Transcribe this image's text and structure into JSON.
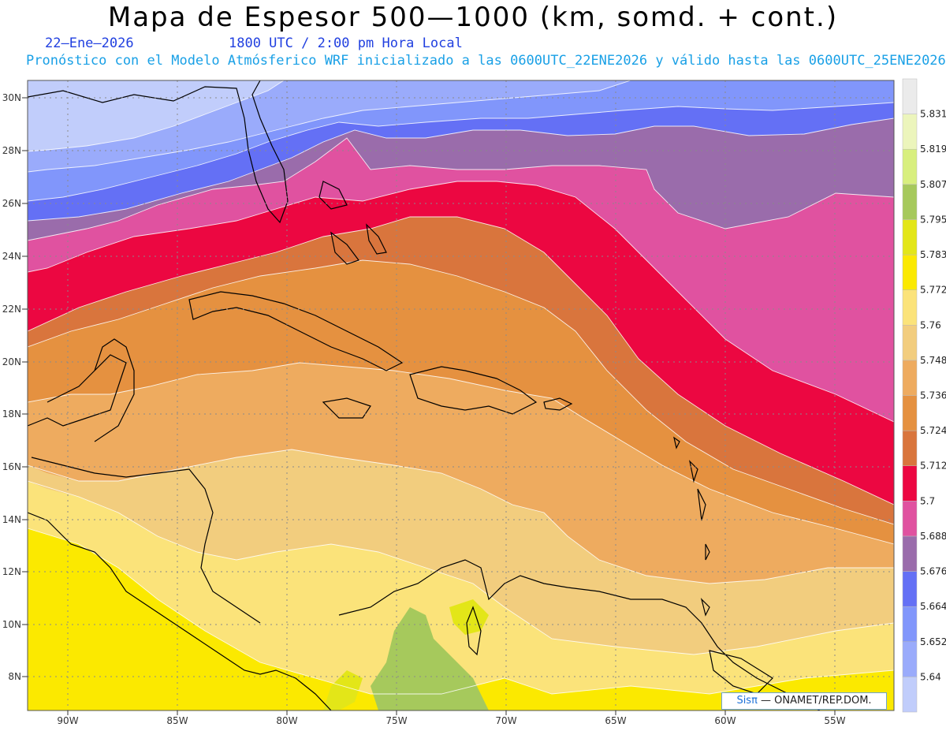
{
  "header": {
    "title": "Mapa de Espesor 500—1000 (km, somd. + cont.)",
    "date": "22—Ene—2026",
    "time": "1800 UTC / 2:00 pm Hora Local",
    "forecast": "Pronóstico con el Modelo Atmósferico WRF inicializado a las 0600UTC_22ENE2026 y válido hasta las  0600UTC_25ENE2026"
  },
  "map": {
    "lat_labels": [
      "30N",
      "28N",
      "26N",
      "24N",
      "22N",
      "20N",
      "18N",
      "16N",
      "14N",
      "12N",
      "10N",
      "8N"
    ],
    "lon_labels": [
      "90W",
      "85W",
      "80W",
      "75W",
      "70W",
      "65W",
      "60W",
      "55W"
    ],
    "grid": true
  },
  "colorbar": {
    "labels": [
      "5.64",
      "5.652",
      "5.664",
      "5.676",
      "5.688",
      "5.7",
      "5.712",
      "5.724",
      "5.736",
      "5.748",
      "5.76",
      "5.772",
      "5.783",
      "5.795",
      "5.807",
      "5.819",
      "5.831"
    ],
    "colors": [
      "#c1cdfb",
      "#9aabfb",
      "#8196fb",
      "#6470f5",
      "#9a6cab",
      "#e052a0",
      "#ec0741",
      "#d9753d",
      "#e59140",
      "#eeab5f",
      "#f2cd7e",
      "#fbe37a",
      "#fbe900",
      "#e3e618",
      "#a6c95c",
      "#d8ef7e",
      "#ecf5bc",
      "#ebebeb"
    ]
  },
  "credit": {
    "sis": "Sisπ",
    "org": " — ONAMET/REP.DOM."
  }
}
